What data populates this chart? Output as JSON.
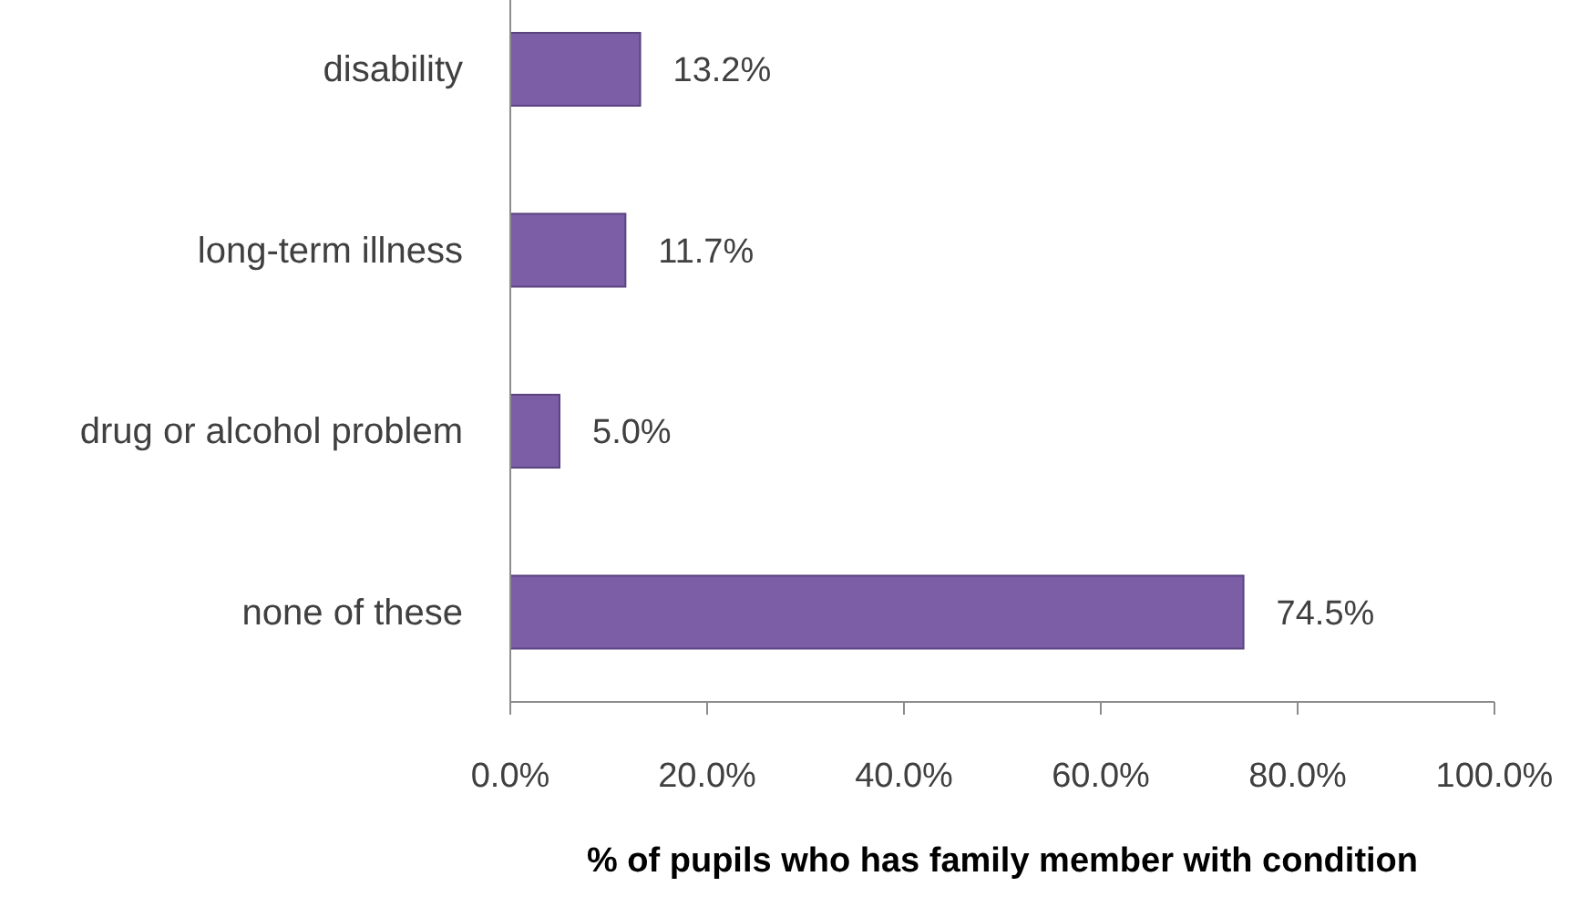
{
  "chart_data": {
    "type": "bar",
    "orientation": "horizontal",
    "xlabel": "% of pupils who has family member with condition",
    "categories": [
      "disability",
      "long-term illness",
      "drug or alcohol problem",
      "none of these"
    ],
    "values": [
      13.2,
      11.7,
      5.0,
      74.5
    ],
    "color": "#7b5ea6",
    "value_labels": [
      "13.2%",
      "11.7%",
      "5.0%",
      "74.5%"
    ],
    "xlim": [
      0,
      100
    ],
    "xticks": [
      {
        "value": 0,
        "label": "0.0%"
      },
      {
        "value": 20,
        "label": "20.0%"
      },
      {
        "value": 40,
        "label": "40.0%"
      },
      {
        "value": 60,
        "label": "60.0%"
      },
      {
        "value": 80,
        "label": "80.0%"
      },
      {
        "value": 100,
        "label": "100.0%"
      }
    ]
  }
}
